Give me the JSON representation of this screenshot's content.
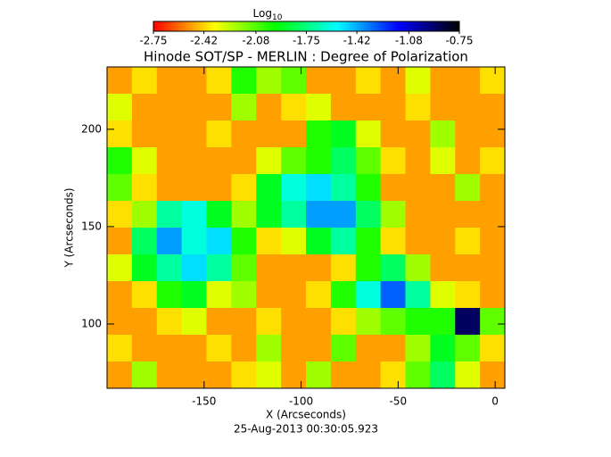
{
  "chart_data": {
    "type": "heatmap",
    "title": "Hinode SOT/SP - MERLIN : Degree of Polarization",
    "x_label": "X (Arcseconds)",
    "y_label": "Y (Arcseconds)",
    "footer": "25-Aug-2013 00:30:05.923",
    "colorbar_label": "Log",
    "colorbar_label_sub": "10",
    "colormap": [
      "#ff0000",
      "#ffff00",
      "#00ff00",
      "#00ffff",
      "#0000ff",
      "#000000"
    ],
    "clim": [
      -2.75,
      -0.75
    ],
    "colorbar_ticks": [
      -2.75,
      -2.42,
      -2.08,
      -1.75,
      -1.42,
      -1.08,
      -0.75
    ],
    "xlim": [
      -200,
      5
    ],
    "ylim": [
      67,
      232
    ],
    "xticks": [
      -150,
      -100,
      -50,
      0
    ],
    "yticks": [
      100,
      150,
      200
    ],
    "z": [
      [
        -2.5,
        -2.4,
        -2.5,
        -2.5,
        -2.4,
        -2.0,
        -2.2,
        -2.1,
        -2.5,
        -2.5,
        -2.4,
        -2.5,
        -2.3,
        -2.5,
        -2.5,
        -2.4
      ],
      [
        -2.3,
        -2.5,
        -2.5,
        -2.5,
        -2.5,
        -2.2,
        -2.5,
        -2.4,
        -2.3,
        -2.5,
        -2.5,
        -2.5,
        -2.4,
        -2.5,
        -2.5,
        -2.5
      ],
      [
        -2.4,
        -2.5,
        -2.5,
        -2.5,
        -2.4,
        -2.5,
        -2.5,
        -2.5,
        -2.0,
        -1.9,
        -2.3,
        -2.5,
        -2.5,
        -2.2,
        -2.5,
        -2.5
      ],
      [
        -2.0,
        -2.3,
        -2.5,
        -2.5,
        -2.5,
        -2.5,
        -2.3,
        -2.1,
        -2.0,
        -1.8,
        -2.1,
        -2.4,
        -2.5,
        -2.3,
        -2.5,
        -2.4
      ],
      [
        -2.1,
        -2.4,
        -2.5,
        -2.5,
        -2.5,
        -2.4,
        -1.9,
        -1.6,
        -1.5,
        -1.7,
        -2.0,
        -2.5,
        -2.5,
        -2.5,
        -2.2,
        -2.5
      ],
      [
        -2.4,
        -2.2,
        -1.7,
        -1.6,
        -1.9,
        -2.2,
        -1.9,
        -1.7,
        -1.4,
        -1.4,
        -1.8,
        -2.2,
        -2.5,
        -2.5,
        -2.5,
        -2.5
      ],
      [
        -2.5,
        -1.8,
        -1.4,
        -1.6,
        -1.5,
        -2.0,
        -2.4,
        -2.3,
        -1.9,
        -1.7,
        -2.0,
        -2.4,
        -2.5,
        -2.5,
        -2.4,
        -2.5
      ],
      [
        -2.3,
        -1.9,
        -1.7,
        -1.5,
        -1.7,
        -2.1,
        -2.5,
        -2.5,
        -2.5,
        -2.4,
        -2.0,
        -1.8,
        -2.2,
        -2.5,
        -2.5,
        -2.5
      ],
      [
        -2.5,
        -2.4,
        -2.0,
        -1.9,
        -2.3,
        -2.2,
        -2.5,
        -2.5,
        -2.4,
        -2.0,
        -1.6,
        -1.3,
        -1.7,
        -2.3,
        -2.4,
        -2.5
      ],
      [
        -2.5,
        -2.5,
        -2.4,
        -2.3,
        -2.5,
        -2.5,
        -2.4,
        -2.5,
        -2.5,
        -2.4,
        -2.2,
        -2.1,
        -2.0,
        -2.0,
        -0.9,
        -2.1
      ],
      [
        -2.4,
        -2.5,
        -2.5,
        -2.5,
        -2.4,
        -2.5,
        -2.2,
        -2.5,
        -2.5,
        -2.1,
        -2.5,
        -2.5,
        -2.2,
        -1.9,
        -2.1,
        -2.4
      ],
      [
        -2.5,
        -2.2,
        -2.5,
        -2.5,
        -2.5,
        -2.4,
        -2.3,
        -2.5,
        -2.2,
        -2.5,
        -2.5,
        -2.4,
        -2.1,
        -1.8,
        -2.3,
        -2.5
      ]
    ]
  }
}
